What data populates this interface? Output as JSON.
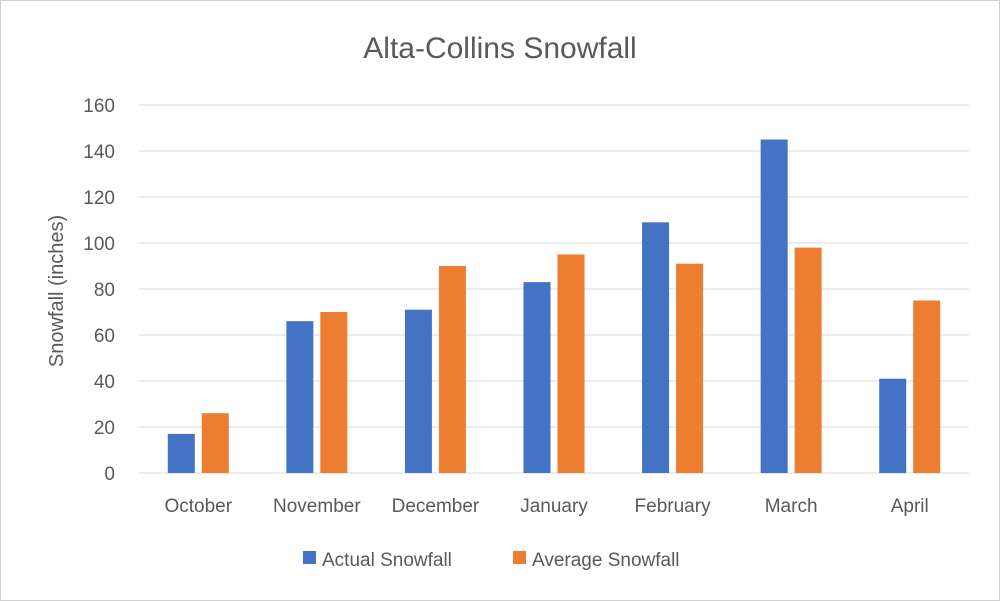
{
  "chart_data": {
    "type": "bar",
    "title": "Alta-Collins Snowfall",
    "xlabel": "",
    "ylabel": "Snowfall (inches)",
    "ylim": [
      0,
      160
    ],
    "yticks": [
      0,
      20,
      40,
      60,
      80,
      100,
      120,
      140,
      160
    ],
    "grid": true,
    "legend_position": "bottom",
    "categories": [
      "October",
      "November",
      "December",
      "January",
      "February",
      "March",
      "April"
    ],
    "series": [
      {
        "name": "Actual Snowfall",
        "color": "#4472C4",
        "values": [
          17,
          66,
          71,
          83,
          109,
          145,
          41
        ]
      },
      {
        "name": "Average Snowfall",
        "color": "#ED7D31",
        "values": [
          26,
          70,
          90,
          95,
          91,
          98,
          75
        ]
      }
    ]
  }
}
